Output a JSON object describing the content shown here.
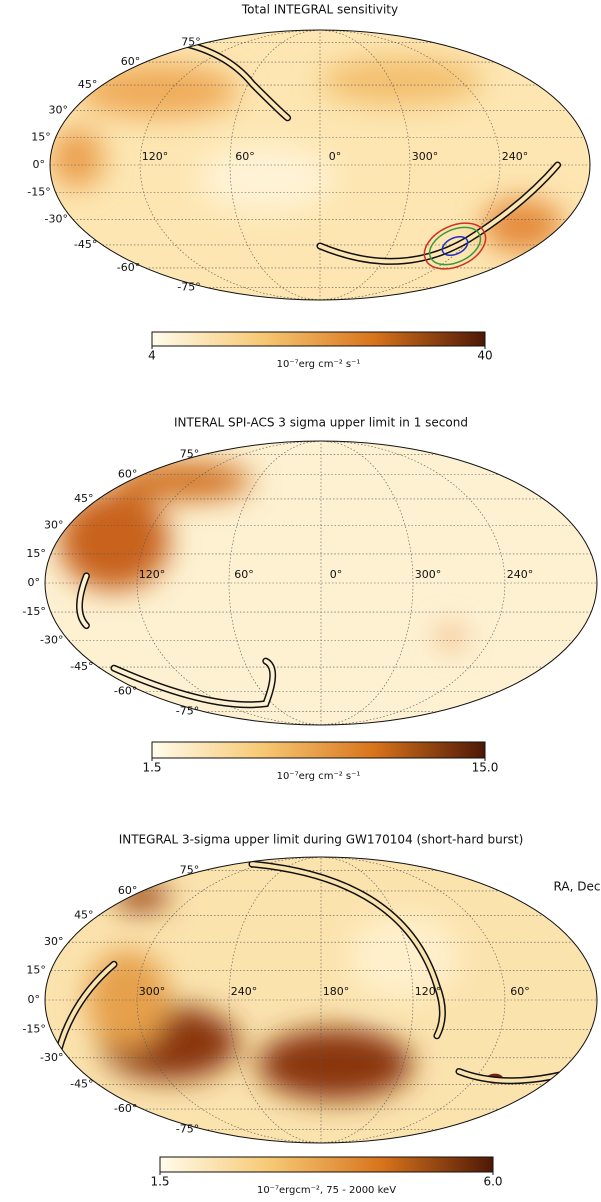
{
  "chart_data": [
    {
      "type": "skymap",
      "title": "Total INTEGRAL sensitivity",
      "center_lon": 0,
      "yticks": [
        {
          "value": 75,
          "label": "75°"
        },
        {
          "value": 60,
          "label": "60°"
        },
        {
          "value": 45,
          "label": "45°"
        },
        {
          "value": 30,
          "label": "30°"
        },
        {
          "value": 15,
          "label": "15°"
        },
        {
          "value": 0,
          "label": "0°"
        },
        {
          "value": -15,
          "label": "-15°"
        },
        {
          "value": -30,
          "label": "-30°"
        },
        {
          "value": -45,
          "label": "-45°"
        },
        {
          "value": -60,
          "label": "-60°"
        },
        {
          "value": -75,
          "label": "-75°"
        }
      ],
      "xticks": [
        {
          "value": 120,
          "label": "120°"
        },
        {
          "value": 60,
          "label": "60°"
        },
        {
          "value": 0,
          "label": "0°"
        },
        {
          "value": 300,
          "label": "300°"
        },
        {
          "value": 240,
          "label": "240°"
        }
      ],
      "grid": true,
      "colormap": [
        "#fffcec",
        "#f7c873",
        "#d8731c",
        "#4e1806"
      ],
      "colorbar": {
        "lim": [
          4,
          40
        ],
        "ticks": [
          4,
          40
        ],
        "label": "10⁻⁷erg cm⁻² s⁻¹"
      }
    },
    {
      "type": "skymap",
      "title": "INTERAL SPI-ACS 3 sigma upper limit in 1 second",
      "center_lon": 0,
      "yticks": [
        {
          "value": 75,
          "label": "75°"
        },
        {
          "value": 60,
          "label": "60°"
        },
        {
          "value": 45,
          "label": "45°"
        },
        {
          "value": 30,
          "label": "30°"
        },
        {
          "value": 15,
          "label": "15°"
        },
        {
          "value": 0,
          "label": "0°"
        },
        {
          "value": -15,
          "label": "-15°"
        },
        {
          "value": -30,
          "label": "-30°"
        },
        {
          "value": -45,
          "label": "-45°"
        },
        {
          "value": -60,
          "label": "-60°"
        },
        {
          "value": -75,
          "label": "-75°"
        }
      ],
      "xticks": [
        {
          "value": 120,
          "label": "120°"
        },
        {
          "value": 60,
          "label": "60°"
        },
        {
          "value": 0,
          "label": "0°"
        },
        {
          "value": 300,
          "label": "300°"
        },
        {
          "value": 240,
          "label": "240°"
        }
      ],
      "grid": true,
      "colormap": [
        "#fffcec",
        "#f7c873",
        "#d8731c",
        "#4e1806"
      ],
      "colorbar": {
        "lim": [
          1.5,
          15
        ],
        "ticks": [
          1.5,
          {
            "value": 15,
            "label": "15.0"
          }
        ],
        "label": "10⁻⁷erg cm⁻² s⁻¹"
      }
    },
    {
      "type": "skymap",
      "title": "INTEGRAL 3-sigma upper limit during GW170104 (short-hard burst)",
      "center_lon": 180,
      "annotation": "RA, Dec",
      "yticks": [
        {
          "value": 75,
          "label": "75°"
        },
        {
          "value": 60,
          "label": "60°"
        },
        {
          "value": 45,
          "label": "45°"
        },
        {
          "value": 30,
          "label": "30°"
        },
        {
          "value": 15,
          "label": "15°"
        },
        {
          "value": 0,
          "label": "0°"
        },
        {
          "value": -15,
          "label": "-15°"
        },
        {
          "value": -30,
          "label": "-30°"
        },
        {
          "value": -45,
          "label": "-45°"
        },
        {
          "value": -60,
          "label": "-60°"
        },
        {
          "value": -75,
          "label": "-75°"
        }
      ],
      "xticks": [
        {
          "value": 300,
          "label": "300°"
        },
        {
          "value": 240,
          "label": "240°"
        },
        {
          "value": 180,
          "label": "180°"
        },
        {
          "value": 120,
          "label": "120°"
        },
        {
          "value": 60,
          "label": "60°"
        }
      ],
      "grid": true,
      "colormap": [
        "#fffcec",
        "#f7c873",
        "#d8731c",
        "#4e1806"
      ],
      "colorbar": {
        "lim": [
          1.5,
          6
        ],
        "ticks": [
          1.5,
          {
            "value": 6,
            "label": "6.0"
          }
        ],
        "label": "10⁻⁷ergcm⁻², 75 - 2000 keV"
      }
    }
  ]
}
